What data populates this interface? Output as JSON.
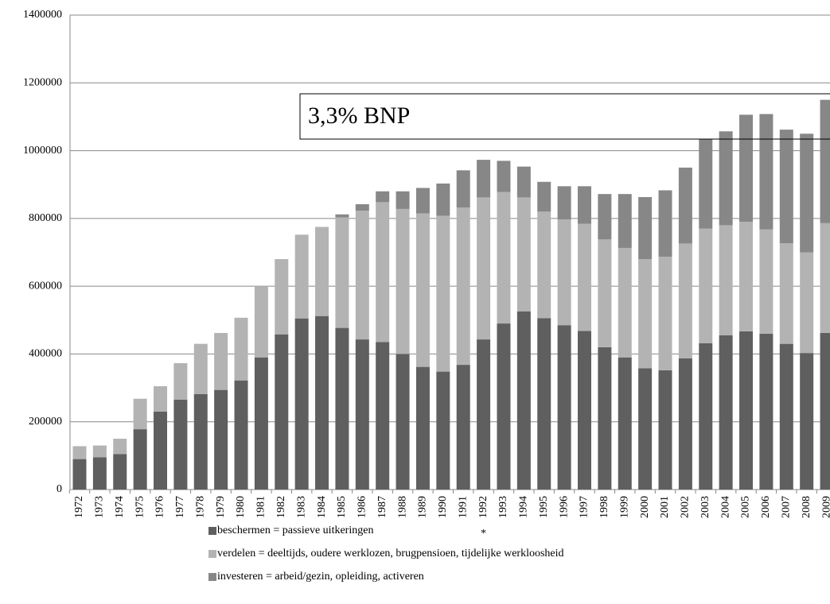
{
  "chart_data": {
    "type": "stacked-bar",
    "annotation": "3,3% BNP",
    "footnote_mark": "*",
    "categories": [
      "1972",
      "1973",
      "1974",
      "1975",
      "1976",
      "1977",
      "1978",
      "1979",
      "1980",
      "1981",
      "1982",
      "1983",
      "1984",
      "1985",
      "1986",
      "1987",
      "1988",
      "1989",
      "1990",
      "1991",
      "1992",
      "1993",
      "1994",
      "1995",
      "1996",
      "1997",
      "1998",
      "1999",
      "2000",
      "2001",
      "2002",
      "2003",
      "2004",
      "2005",
      "2006",
      "2007",
      "2008",
      "2009"
    ],
    "series": [
      {
        "name": "beschermen = passieve uitkeringen",
        "color": "#5f5f5f",
        "values": [
          90000,
          95000,
          105000,
          178000,
          230000,
          265000,
          282000,
          294000,
          322000,
          390000,
          458000,
          505000,
          512000,
          477000,
          443000,
          435000,
          400000,
          362000,
          348000,
          368000,
          443000,
          490000,
          526000,
          506000,
          485000,
          468000,
          420000,
          390000,
          358000,
          352000,
          387000,
          432000,
          455000,
          467000,
          460000,
          430000,
          403000,
          462000
        ]
      },
      {
        "name": "verdelen = deeltijds, oudere werklozen, brugpensioen, tijdelijke werkloosheid",
        "color": "#b3b3b3",
        "values": [
          38000,
          35000,
          45000,
          90000,
          75000,
          108000,
          148000,
          168000,
          185000,
          210000,
          222000,
          247000,
          263000,
          326000,
          380000,
          413000,
          428000,
          453000,
          460000,
          464000,
          419000,
          388000,
          336000,
          314000,
          312000,
          316000,
          318000,
          323000,
          322000,
          335000,
          339000,
          338000,
          325000,
          323000,
          308000,
          297000,
          297000,
          324000
        ]
      },
      {
        "name": "investeren = arbeid/gezin, opleiding, activeren",
        "color": "#878787",
        "values": [
          0,
          0,
          0,
          0,
          0,
          0,
          0,
          0,
          0,
          0,
          0,
          0,
          0,
          9000,
          19000,
          32000,
          52000,
          75000,
          95000,
          110000,
          111000,
          92000,
          91000,
          88000,
          98000,
          111000,
          134000,
          159000,
          183000,
          196000,
          224000,
          263000,
          277000,
          316000,
          340000,
          335000,
          350000,
          364000
        ]
      }
    ],
    "ylim": [
      0,
      1400000
    ],
    "yticks": [
      0,
      200000,
      400000,
      600000,
      800000,
      1000000,
      1200000,
      1400000
    ],
    "grid": true
  }
}
